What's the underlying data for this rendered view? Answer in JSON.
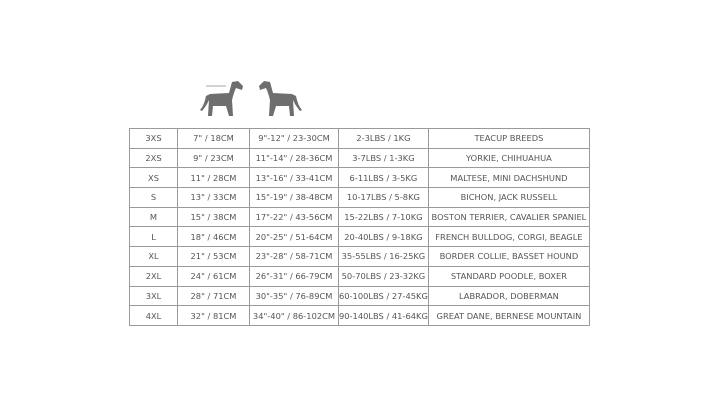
{
  "rows": [
    [
      "3XS",
      "7\" / 18CM",
      "9\"-12\" / 23-30CM",
      "2-3LBS / 1KG",
      "TEACUP BREEDS"
    ],
    [
      "2XS",
      "9\" / 23CM",
      "11\"-14\" / 28-36CM",
      "3-7LBS / 1-3KG",
      "YORKIE, CHIHUAHUA"
    ],
    [
      "XS",
      "11\" / 28CM",
      "13\"-16\" / 33-41CM",
      "6-11LBS / 3-5KG",
      "MALTESE, MINI DACHSHUND"
    ],
    [
      "S",
      "13\" / 33CM",
      "15\"-19\" / 38-48CM",
      "10-17LBS / 5-8KG",
      "BICHON, JACK RUSSELL"
    ],
    [
      "M",
      "15\" / 38CM",
      "17\"-22\" / 43-56CM",
      "15-22LBS / 7-10KG",
      "BOSTON TERRIER, CAVALIER SPANIEL"
    ],
    [
      "L",
      "18\" / 46CM",
      "20\"-25\" / 51-64CM",
      "20-40LBS / 9-18KG",
      "FRENCH BULLDOG, CORGI, BEAGLE"
    ],
    [
      "XL",
      "21\" / 53CM",
      "23\"-28\" / 58-71CM",
      "35-55LBS / 16-25KG",
      "BORDER COLLIE, BASSET HOUND"
    ],
    [
      "2XL",
      "24\" / 61CM",
      "26\"-31\" / 66-79CM",
      "50-70LBS / 23-32KG",
      "STANDARD POODLE, BOXER"
    ],
    [
      "3XL",
      "28\" / 71CM",
      "30\"-35\" / 76-89CM",
      "60-100LBS / 27-45KG",
      "LABRADOR, DOBERMAN"
    ],
    [
      "4XL",
      "32\" / 81CM",
      "34\"-40\" / 86-102CM",
      "90-140LBS / 41-64KG",
      "GREAT DANE, BERNESE MOUNTAIN"
    ]
  ]
}
